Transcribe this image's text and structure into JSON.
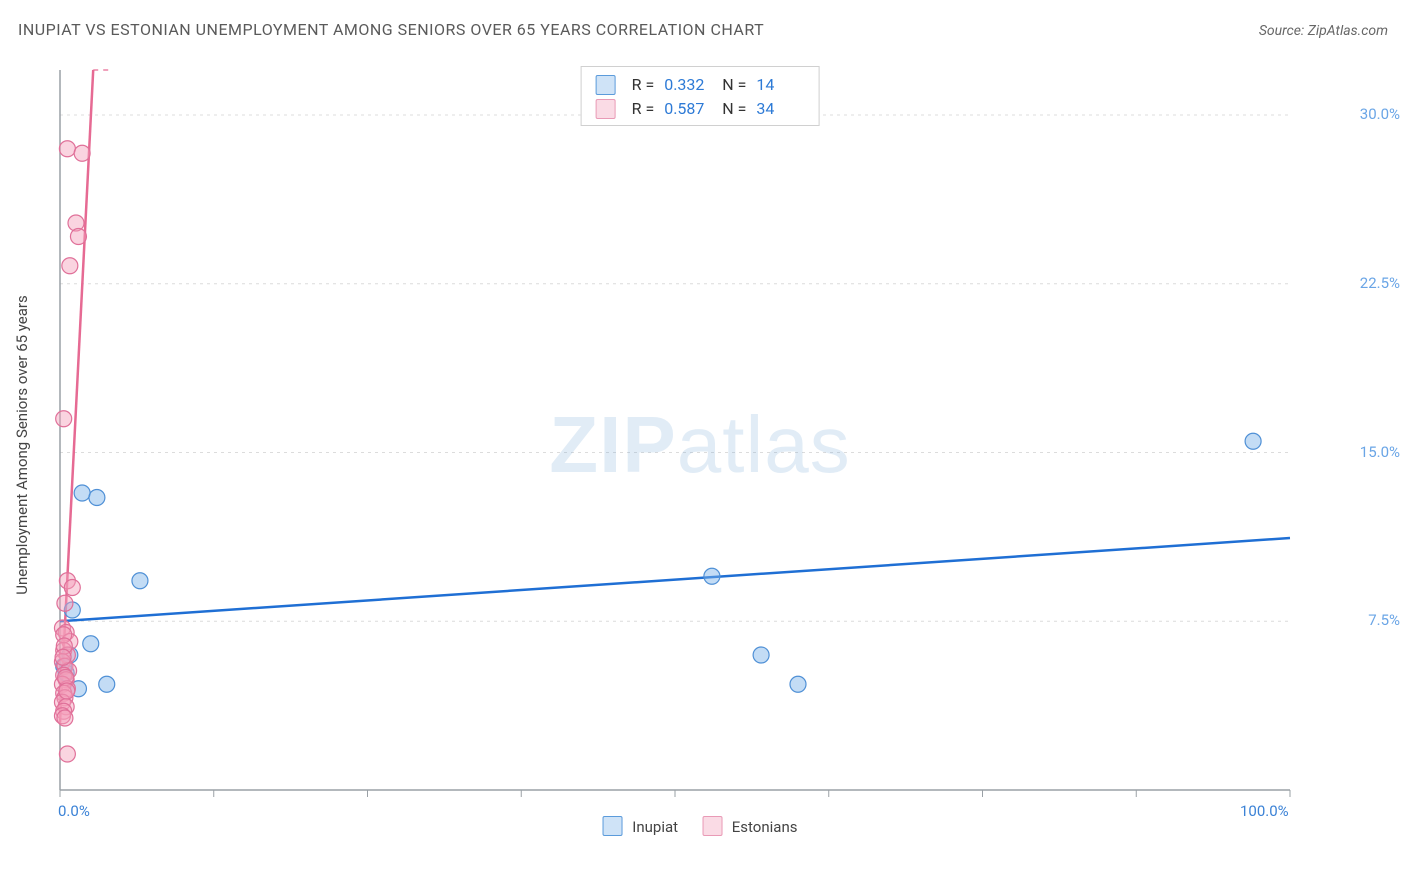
{
  "title": "INUPIAT VS ESTONIAN UNEMPLOYMENT AMONG SENIORS OVER 65 YEARS CORRELATION CHART",
  "source_prefix": "Source: ",
  "source": "ZipAtlas.com",
  "ylabel": "Unemployment Among Seniors over 65 years",
  "watermark_bold": "ZIP",
  "watermark_light": "atlas",
  "chart": {
    "type": "scatter",
    "background_color": "#ffffff",
    "grid_color": "#dcdcdc",
    "axis_color": "#9aa0a6",
    "xlim": [
      0,
      100
    ],
    "ylim": [
      0,
      32
    ],
    "xtick_positions": [
      0,
      12.5,
      25,
      37.5,
      50,
      62.5,
      75,
      87.5,
      100
    ],
    "xtick_labels": {
      "0": "0.0%",
      "100": "100.0%"
    },
    "ytick_positions": [
      7.5,
      15.0,
      22.5,
      30.0
    ],
    "ytick_labels": [
      "7.5%",
      "15.0%",
      "22.5%",
      "30.0%"
    ],
    "marker_radius": 8,
    "marker_stroke_width": 1.2,
    "trend_line_width": 2.5,
    "series": [
      {
        "name": "Inupiat",
        "label": "Inupiat",
        "fill_color": "rgba(122, 178, 232, 0.45)",
        "stroke_color": "#4f90d6",
        "legend_swatch_fill": "#cfe3f7",
        "legend_swatch_border": "#5b9bdb",
        "r": "0.332",
        "n": "14",
        "trend": {
          "x1": 0,
          "y1": 7.5,
          "x2": 100,
          "y2": 11.2,
          "color": "#1f6fd4",
          "dash": ""
        },
        "points": [
          {
            "x": 1.8,
            "y": 13.2
          },
          {
            "x": 3.0,
            "y": 13.0
          },
          {
            "x": 6.5,
            "y": 9.3
          },
          {
            "x": 1.0,
            "y": 8.0
          },
          {
            "x": 2.5,
            "y": 6.5
          },
          {
            "x": 0.8,
            "y": 6.0
          },
          {
            "x": 0.5,
            "y": 5.2
          },
          {
            "x": 3.8,
            "y": 4.7
          },
          {
            "x": 53.0,
            "y": 9.5
          },
          {
            "x": 57.0,
            "y": 6.0
          },
          {
            "x": 60.0,
            "y": 4.7
          },
          {
            "x": 97.0,
            "y": 15.5
          },
          {
            "x": 0.3,
            "y": 5.5
          },
          {
            "x": 1.5,
            "y": 4.5
          }
        ]
      },
      {
        "name": "Estonians",
        "label": "Estonians",
        "fill_color": "rgba(243, 159, 186, 0.45)",
        "stroke_color": "#e07099",
        "legend_swatch_fill": "#fadbe5",
        "legend_swatch_border": "#e99ab6",
        "r": "0.587",
        "n": "34",
        "trend": {
          "x1": 0,
          "y1": 3.0,
          "x2": 2.7,
          "y2": 32.0,
          "color": "#e66a93",
          "dash": "",
          "extend_dash_to": {
            "x": 4.2,
            "y": 32.0
          }
        },
        "points": [
          {
            "x": 0.6,
            "y": 28.5
          },
          {
            "x": 1.8,
            "y": 28.3
          },
          {
            "x": 1.3,
            "y": 25.2
          },
          {
            "x": 1.5,
            "y": 24.6
          },
          {
            "x": 0.8,
            "y": 23.3
          },
          {
            "x": 0.3,
            "y": 16.5
          },
          {
            "x": 0.6,
            "y": 9.3
          },
          {
            "x": 1.0,
            "y": 9.0
          },
          {
            "x": 0.4,
            "y": 8.3
          },
          {
            "x": 0.2,
            "y": 7.2
          },
          {
            "x": 0.5,
            "y": 7.0
          },
          {
            "x": 0.8,
            "y": 6.6
          },
          {
            "x": 0.3,
            "y": 6.2
          },
          {
            "x": 0.6,
            "y": 6.0
          },
          {
            "x": 0.2,
            "y": 5.7
          },
          {
            "x": 0.4,
            "y": 5.5
          },
          {
            "x": 0.7,
            "y": 5.3
          },
          {
            "x": 0.3,
            "y": 5.1
          },
          {
            "x": 0.5,
            "y": 4.9
          },
          {
            "x": 0.2,
            "y": 4.7
          },
          {
            "x": 0.6,
            "y": 4.5
          },
          {
            "x": 0.3,
            "y": 4.3
          },
          {
            "x": 0.4,
            "y": 4.1
          },
          {
            "x": 0.2,
            "y": 3.9
          },
          {
            "x": 0.5,
            "y": 3.7
          },
          {
            "x": 0.3,
            "y": 3.5
          },
          {
            "x": 0.2,
            "y": 3.3
          },
          {
            "x": 0.4,
            "y": 3.2
          },
          {
            "x": 0.6,
            "y": 1.6
          },
          {
            "x": 0.3,
            "y": 6.9
          },
          {
            "x": 0.35,
            "y": 6.4
          },
          {
            "x": 0.25,
            "y": 5.9
          },
          {
            "x": 0.45,
            "y": 5.0
          },
          {
            "x": 0.55,
            "y": 4.4
          }
        ]
      }
    ]
  },
  "legend_literals": {
    "R_prefix": "R =",
    "N_prefix": "N ="
  }
}
